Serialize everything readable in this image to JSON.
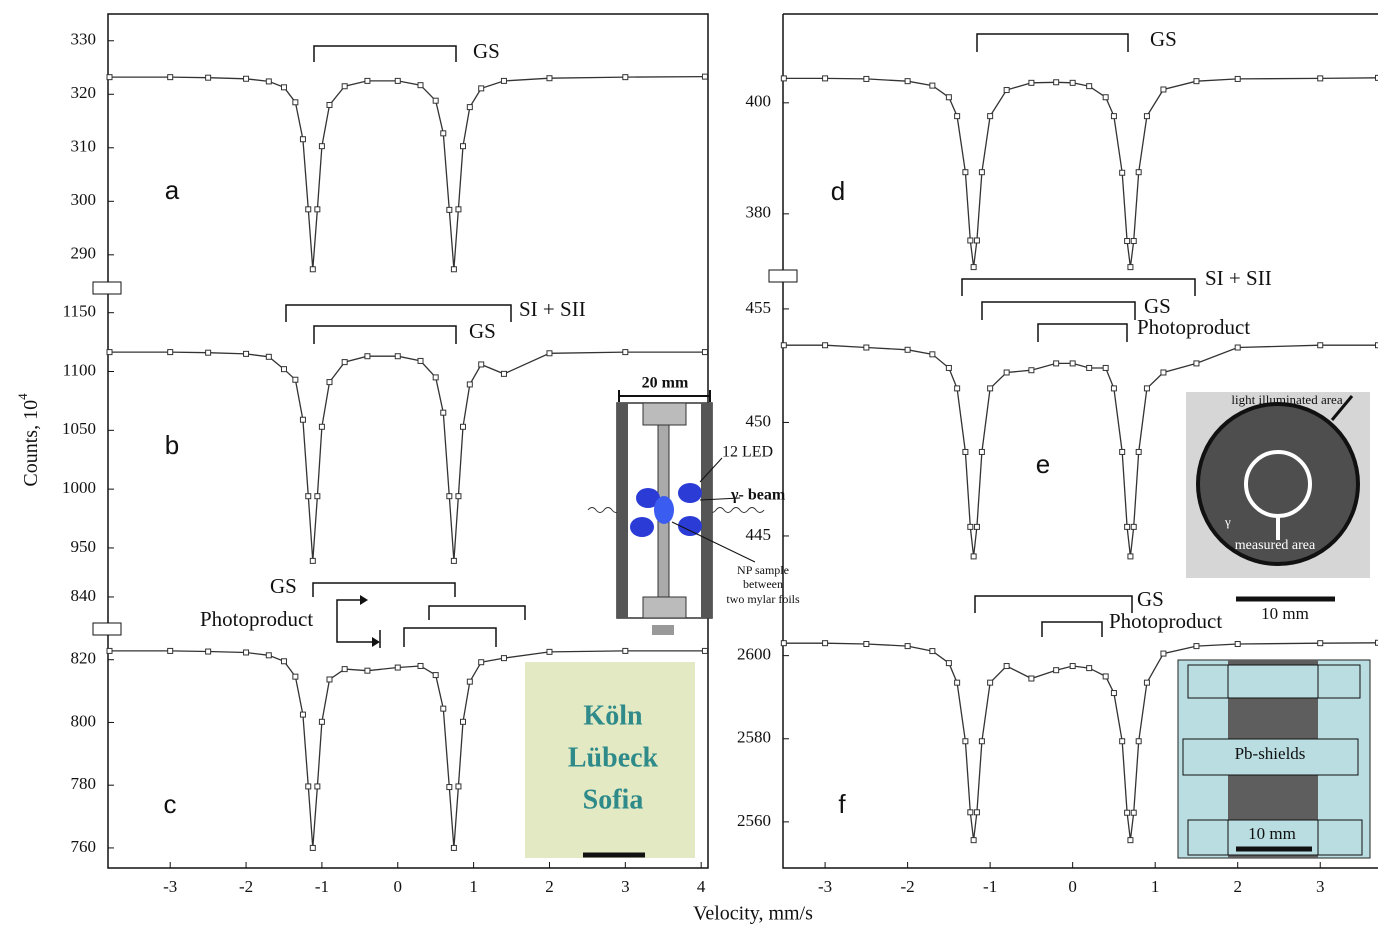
{
  "chart_data": [
    {
      "type": "line",
      "panel_label": "a",
      "annotations": [
        "GS"
      ],
      "color": "#333333",
      "x": [
        -3.8,
        -3,
        -2.5,
        -2,
        -1.7,
        -1.5,
        -1.35,
        -1.25,
        -1.18,
        -1.12,
        -1.06,
        -1,
        -0.9,
        -0.7,
        -0.4,
        0,
        0.3,
        0.5,
        0.6,
        0.68,
        0.74,
        0.8,
        0.86,
        0.95,
        1.1,
        1.4,
        2,
        3,
        4.05
      ],
      "values": [
        323.2,
        323.2,
        323.1,
        322.9,
        322.4,
        321.3,
        318.5,
        311.6,
        298.5,
        287.3,
        298.5,
        310.3,
        318,
        321.5,
        322.5,
        322.5,
        321.7,
        318.8,
        312.7,
        298.4,
        287.3,
        298.5,
        310.3,
        317.6,
        321.1,
        322.5,
        323,
        323.2,
        323.3
      ],
      "xlim": [
        -3.82,
        4.09
      ],
      "ylim": [
        283.8,
        335
      ],
      "yticks": [
        290,
        300,
        310,
        320,
        330
      ]
    },
    {
      "type": "line",
      "panel_label": "b",
      "annotations": [
        "SI + SII",
        "GS"
      ],
      "color": "#333333",
      "x": [
        -3.8,
        -3,
        -2.5,
        -2,
        -1.7,
        -1.5,
        -1.35,
        -1.25,
        -1.18,
        -1.12,
        -1.06,
        -1,
        -0.9,
        -0.7,
        -0.4,
        0,
        0.3,
        0.5,
        0.6,
        0.68,
        0.74,
        0.8,
        0.86,
        0.95,
        1.1,
        1.4,
        2,
        3,
        4.05
      ],
      "values": [
        1116.5,
        1116.5,
        1116,
        1115,
        1112.5,
        1102,
        1093,
        1059,
        994,
        939,
        994,
        1053,
        1091,
        1108,
        1113,
        1113,
        1109,
        1095,
        1065,
        994,
        939,
        994,
        1053,
        1089,
        1106,
        1098,
        1115.5,
        1116.5,
        1116.5
      ],
      "xlim": [
        -3.82,
        4.09
      ],
      "ylim": [
        927,
        1171
      ],
      "yticks": [
        950,
        1000,
        1050,
        1100,
        1150
      ]
    },
    {
      "type": "line",
      "panel_label": "c",
      "annotations": [
        "GS",
        "Photoproduct"
      ],
      "color": "#333333",
      "x": [
        -3.8,
        -3,
        -2.5,
        -2,
        -1.7,
        -1.5,
        -1.35,
        -1.25,
        -1.18,
        -1.12,
        -1.06,
        -1,
        -0.9,
        -0.7,
        -0.4,
        0,
        0.3,
        0.5,
        0.6,
        0.68,
        0.74,
        0.8,
        0.86,
        0.95,
        1.1,
        1.4,
        2,
        3,
        4.05
      ],
      "values": [
        822.8,
        822.8,
        822.6,
        822.3,
        821.4,
        819.5,
        814.6,
        802.5,
        779.6,
        760,
        779.6,
        800.2,
        813.7,
        817,
        816.5,
        817.5,
        818,
        815.1,
        804.4,
        779.4,
        760,
        779.6,
        800.2,
        813,
        819.2,
        820.5,
        822.5,
        822.8,
        822.8
      ],
      "xlim": [
        -3.82,
        4.09
      ],
      "ylim": [
        753.6,
        847
      ],
      "yticks": [
        760,
        780,
        800,
        820,
        840
      ],
      "xticks": [
        -3,
        -2,
        -1,
        0,
        1,
        2,
        3,
        4
      ]
    },
    {
      "type": "line",
      "panel_label": "d",
      "annotations": [
        "GS"
      ],
      "color": "#333333",
      "x": [
        -3.5,
        -3,
        -2.5,
        -2,
        -1.7,
        -1.5,
        -1.4,
        -1.3,
        -1.24,
        -1.2,
        -1.16,
        -1.1,
        -1,
        -0.8,
        -0.5,
        -0.2,
        0,
        0.2,
        0.4,
        0.5,
        0.6,
        0.66,
        0.7,
        0.74,
        0.8,
        0.9,
        1.1,
        1.5,
        2,
        3,
        3.7
      ],
      "values": [
        404.4,
        404.4,
        404.3,
        403.9,
        403.1,
        401,
        397.6,
        387.5,
        375.2,
        370.4,
        375.2,
        387.5,
        397.6,
        402.3,
        403.6,
        403.7,
        403.6,
        403,
        401,
        397.6,
        387.4,
        375.1,
        370.4,
        375.1,
        387.5,
        397.6,
        402.4,
        403.9,
        404.3,
        404.4,
        404.5
      ],
      "xlim": [
        -3.51,
        3.7
      ],
      "ylim": [
        368.8,
        416
      ],
      "yticks": [
        380,
        400
      ]
    },
    {
      "type": "line",
      "panel_label": "e",
      "annotations": [
        "SI + SII",
        "GS",
        "Photoproduct"
      ],
      "color": "#333333",
      "x": [
        -3.5,
        -3,
        -2.5,
        -2,
        -1.7,
        -1.5,
        -1.4,
        -1.3,
        -1.24,
        -1.2,
        -1.16,
        -1.1,
        -1,
        -0.8,
        -0.5,
        -0.2,
        0,
        0.2,
        0.4,
        0.5,
        0.6,
        0.66,
        0.7,
        0.74,
        0.8,
        0.9,
        1.1,
        1.5,
        2,
        3,
        3.7
      ],
      "values": [
        453.4,
        453.4,
        453.3,
        453.2,
        453,
        452.4,
        451.5,
        448.7,
        445.4,
        444.1,
        445.4,
        448.7,
        451.5,
        452.2,
        452.3,
        452.6,
        452.6,
        452.4,
        452.4,
        451.5,
        448.7,
        445.4,
        444.1,
        445.4,
        448.7,
        451.5,
        452.2,
        452.6,
        453.3,
        453.4,
        453.4
      ],
      "xlim": [
        -3.51,
        3.7
      ],
      "ylim": [
        442.84,
        456.45
      ],
      "yticks": [
        445,
        450,
        455
      ]
    },
    {
      "type": "line",
      "panel_label": "f",
      "annotations": [
        "GS",
        "Photoproduct"
      ],
      "color": "#333333",
      "x": [
        -3.5,
        -3,
        -2.5,
        -2,
        -1.7,
        -1.5,
        -1.4,
        -1.3,
        -1.24,
        -1.2,
        -1.16,
        -1.1,
        -1,
        -0.8,
        -0.5,
        -0.2,
        0,
        0.2,
        0.4,
        0.5,
        0.6,
        0.66,
        0.7,
        0.74,
        0.8,
        0.9,
        1.1,
        1.5,
        2,
        3,
        3.7
      ],
      "values": [
        2603,
        2603,
        2602.8,
        2602.3,
        2601.1,
        2598.2,
        2593.5,
        2579.4,
        2562.3,
        2555.6,
        2562.3,
        2579.4,
        2593.5,
        2597.5,
        2594.5,
        2596.5,
        2597.5,
        2597,
        2595,
        2591,
        2579.4,
        2562.2,
        2555.6,
        2562.2,
        2579.4,
        2593.5,
        2600.5,
        2602.3,
        2602.8,
        2603,
        2603.1
      ],
      "xlim": [
        -3.51,
        3.7
      ],
      "ylim": [
        2548.9,
        2617
      ],
      "yticks": [
        2560,
        2580,
        2600
      ],
      "xticks": [
        -3,
        -2,
        -1,
        0,
        1,
        2,
        3
      ]
    }
  ],
  "x_label": "Velocity, mm/s",
  "y_label": "Counts, 10",
  "y_label_exponent": "4",
  "insets": {
    "cell": {
      "width": "20 mm",
      "leds": "12 LED",
      "beam": "γ- beam",
      "sample": [
        "NP sample",
        "between",
        "two mylar foils"
      ]
    },
    "photo_e": {
      "top": "light illuminated area",
      "gamma": "γ",
      "inner": "measured area",
      "scale": "10 mm"
    },
    "photo_f": {
      "shields": "Pb-shields",
      "scale": "10 mm"
    },
    "photo_c": {
      "lines": [
        "Köln",
        "Lübeck",
        "Sofia"
      ]
    }
  }
}
